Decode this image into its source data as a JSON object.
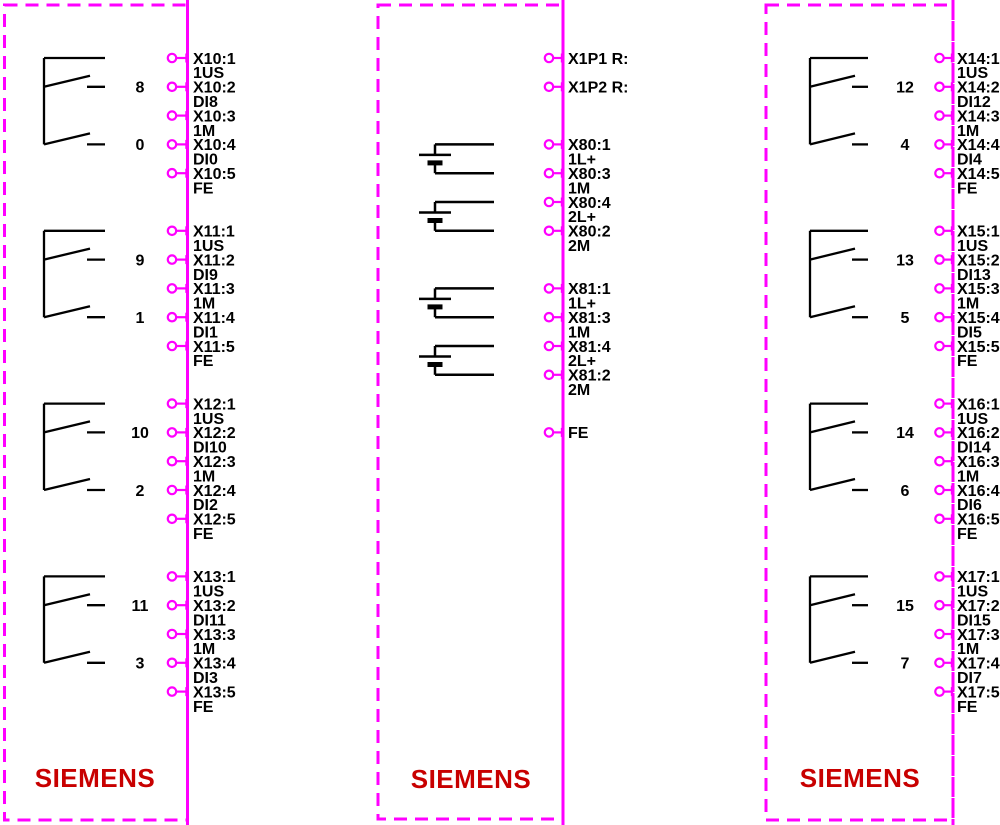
{
  "brand_label": "SIEMENS",
  "colors": {
    "accent": "#ff00ff",
    "ink": "#000000",
    "logo_red": "#c80000"
  },
  "panels": {
    "left": {
      "blocks": [
        {
          "switch_numbers": [
            "8",
            "0"
          ],
          "pins": [
            {
              "id": "X10:1",
              "signal": "1US"
            },
            {
              "id": "X10:2",
              "signal": "DI8"
            },
            {
              "id": "X10:3",
              "signal": "1M"
            },
            {
              "id": "X10:4",
              "signal": "DI0"
            },
            {
              "id": "X10:5",
              "signal": "FE"
            }
          ]
        },
        {
          "switch_numbers": [
            "9",
            "1"
          ],
          "pins": [
            {
              "id": "X11:1",
              "signal": "1US"
            },
            {
              "id": "X11:2",
              "signal": "DI9"
            },
            {
              "id": "X11:3",
              "signal": "1M"
            },
            {
              "id": "X11:4",
              "signal": "DI1"
            },
            {
              "id": "X11:5",
              "signal": "FE"
            }
          ]
        },
        {
          "switch_numbers": [
            "10",
            "2"
          ],
          "pins": [
            {
              "id": "X12:1",
              "signal": "1US"
            },
            {
              "id": "X12:2",
              "signal": "DI10"
            },
            {
              "id": "X12:3",
              "signal": "1M"
            },
            {
              "id": "X12:4",
              "signal": "DI2"
            },
            {
              "id": "X12:5",
              "signal": "FE"
            }
          ]
        },
        {
          "switch_numbers": [
            "11",
            "3"
          ],
          "pins": [
            {
              "id": "X13:1",
              "signal": "1US"
            },
            {
              "id": "X13:2",
              "signal": "DI11"
            },
            {
              "id": "X13:3",
              "signal": "1M"
            },
            {
              "id": "X13:4",
              "signal": "DI3"
            },
            {
              "id": "X13:5",
              "signal": "FE"
            }
          ]
        }
      ]
    },
    "middle": {
      "reference_pins": [
        {
          "id": "X1P1 R:"
        },
        {
          "id": "X1P2 R:"
        }
      ],
      "supply_groups": [
        {
          "pins": [
            {
              "id": "X80:1",
              "signal": "1L+"
            },
            {
              "id": "X80:3",
              "signal": "1M"
            },
            {
              "id": "X80:4",
              "signal": "2L+"
            },
            {
              "id": "X80:2",
              "signal": "2M"
            }
          ]
        },
        {
          "pins": [
            {
              "id": "X81:1",
              "signal": "1L+"
            },
            {
              "id": "X81:3",
              "signal": "1M"
            },
            {
              "id": "X81:4",
              "signal": "2L+"
            },
            {
              "id": "X81:2",
              "signal": "2M"
            }
          ]
        }
      ],
      "ground_pin": {
        "id": "FE"
      }
    },
    "right": {
      "blocks": [
        {
          "switch_numbers": [
            "12",
            "4"
          ],
          "pins": [
            {
              "id": "X14:1",
              "signal": "1US"
            },
            {
              "id": "X14:2",
              "signal": "DI12"
            },
            {
              "id": "X14:3",
              "signal": "1M"
            },
            {
              "id": "X14:4",
              "signal": "DI4"
            },
            {
              "id": "X14:5",
              "signal": "FE"
            }
          ]
        },
        {
          "switch_numbers": [
            "13",
            "5"
          ],
          "pins": [
            {
              "id": "X15:1",
              "signal": "1US"
            },
            {
              "id": "X15:2",
              "signal": "DI13"
            },
            {
              "id": "X15:3",
              "signal": "1M"
            },
            {
              "id": "X15:4",
              "signal": "DI5"
            },
            {
              "id": "X15:5",
              "signal": "FE"
            }
          ]
        },
        {
          "switch_numbers": [
            "14",
            "6"
          ],
          "pins": [
            {
              "id": "X16:1",
              "signal": "1US"
            },
            {
              "id": "X16:2",
              "signal": "DI14"
            },
            {
              "id": "X16:3",
              "signal": "1M"
            },
            {
              "id": "X16:4",
              "signal": "DI6"
            },
            {
              "id": "X16:5",
              "signal": "FE"
            }
          ]
        },
        {
          "switch_numbers": [
            "15",
            "7"
          ],
          "pins": [
            {
              "id": "X17:1",
              "signal": "1US"
            },
            {
              "id": "X17:2",
              "signal": "DI15"
            },
            {
              "id": "X17:3",
              "signal": "1M"
            },
            {
              "id": "X17:4",
              "signal": "DI7"
            },
            {
              "id": "X17:5",
              "signal": "FE"
            }
          ]
        }
      ]
    }
  }
}
